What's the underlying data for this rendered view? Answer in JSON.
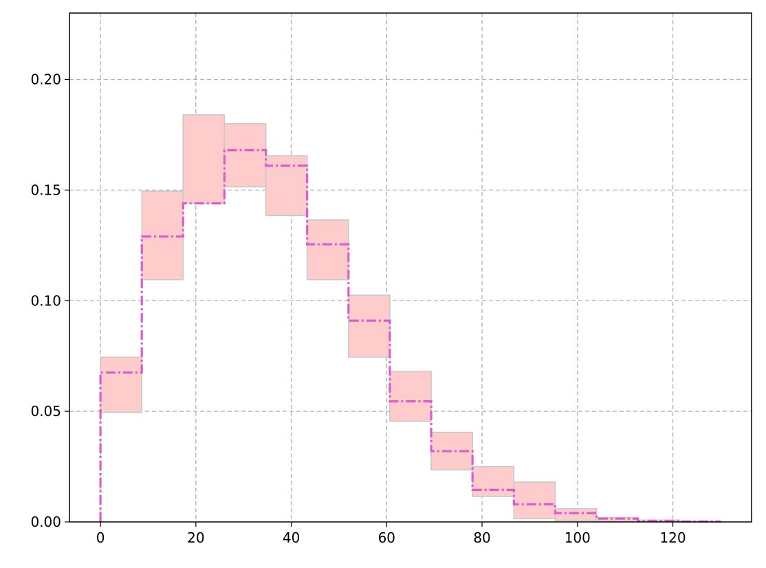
{
  "chart_data": {
    "type": "area",
    "title": "",
    "xlabel": "",
    "ylabel": "",
    "xlim": [
      -6.5,
      136.5
    ],
    "ylim": [
      0,
      0.23
    ],
    "grid": true,
    "x_ticks": [
      0,
      20,
      40,
      60,
      80,
      100,
      120
    ],
    "x_tick_labels": [
      "0",
      "20",
      "40",
      "60",
      "80",
      "100",
      "120"
    ],
    "y_ticks": [
      0,
      0.05,
      0.1,
      0.15,
      0.2
    ],
    "y_tick_labels": [
      "0.00",
      "0.05",
      "0.10",
      "0.15",
      "0.20"
    ],
    "bin_edges": [
      0,
      8.67,
      17.33,
      26,
      34.67,
      43.33,
      52,
      60.67,
      69.33,
      78,
      86.67,
      95.33,
      104,
      112.67,
      121.33,
      130
    ],
    "series": [
      {
        "kind": "step",
        "values": [
          0.0675,
          0.129,
          0.144,
          0.168,
          0.161,
          0.1255,
          0.091,
          0.0545,
          0.032,
          0.0145,
          0.008,
          0.004,
          0.0015,
          0.0005,
          0.0002
        ]
      },
      {
        "kind": "band",
        "lower": [
          0.0495,
          0.1095,
          0.144,
          0.1515,
          0.1385,
          0.1095,
          0.0745,
          0.0455,
          0.0235,
          0.0115,
          0.0015,
          0.0005,
          0.0002,
          0.0,
          0.0
        ],
        "upper": [
          0.0745,
          0.1495,
          0.184,
          0.18,
          0.1655,
          0.1365,
          0.1025,
          0.068,
          0.0405,
          0.025,
          0.018,
          0.006,
          0.002,
          0.0008,
          0.0003
        ]
      }
    ],
    "colors": {
      "line": "#dd5ccc",
      "band_fill": "#ffcccc",
      "band_edge": "#c8c8c8",
      "grid": "#b0b0b0"
    }
  }
}
